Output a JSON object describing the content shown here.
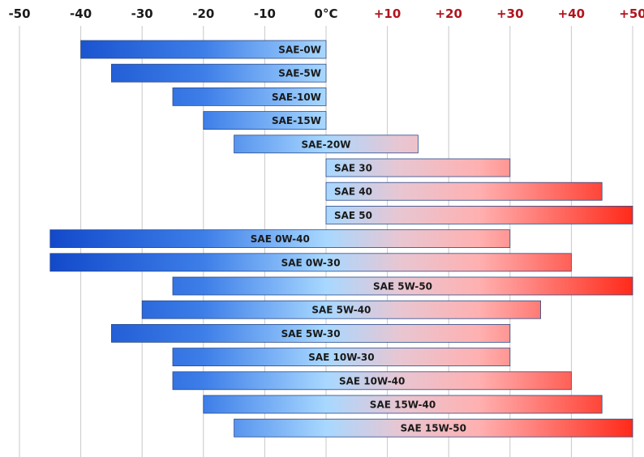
{
  "chart_data": {
    "type": "bar",
    "orientation": "horizontal-range",
    "title": "",
    "xlabel": "",
    "ylabel": "",
    "xlim": [
      -50,
      50
    ],
    "grid": true,
    "x_ticks": [
      {
        "value": -50,
        "label": "-50"
      },
      {
        "value": -40,
        "label": "-40"
      },
      {
        "value": -30,
        "label": "-30"
      },
      {
        "value": -20,
        "label": "-20"
      },
      {
        "value": -10,
        "label": "-10"
      },
      {
        "value": 0,
        "label": "0°C"
      },
      {
        "value": 10,
        "label": "+10"
      },
      {
        "value": 20,
        "label": "+20"
      },
      {
        "value": 30,
        "label": "+30"
      },
      {
        "value": 40,
        "label": "+40"
      },
      {
        "value": 50,
        "label": "+50"
      }
    ],
    "categories": [
      "SAE-0W",
      "SAE-5W",
      "SAE-10W",
      "SAE-15W",
      "SAE-20W",
      "SAE 30",
      "SAE 40",
      "SAE 50",
      "SAE 0W-40",
      "SAE 0W-30",
      "SAE 5W-50",
      "SAE 5W-40",
      "SAE 5W-30",
      "SAE 10W-30",
      "SAE 10W-40",
      "SAE 15W-40",
      "SAE 15W-50"
    ],
    "ranges": [
      [
        -40,
        0
      ],
      [
        -35,
        0
      ],
      [
        -25,
        0
      ],
      [
        -20,
        0
      ],
      [
        -15,
        15
      ],
      [
        0,
        30
      ],
      [
        0,
        45
      ],
      [
        0,
        50
      ],
      [
        -45,
        30
      ],
      [
        -45,
        40
      ],
      [
        -25,
        50
      ],
      [
        -30,
        35
      ],
      [
        -35,
        30
      ],
      [
        -25,
        30
      ],
      [
        -25,
        40
      ],
      [
        -20,
        45
      ],
      [
        -15,
        50
      ]
    ],
    "colors": {
      "cold_dark": "#0a3fc4",
      "cold_light": "#a8d8ff",
      "hot_light": "#ffc4c4",
      "hot_dark": "#ff2a1a",
      "negative_tick": "#1a1a1a",
      "positive_tick": "#b0141e",
      "grid": "#c8c8c8"
    }
  }
}
